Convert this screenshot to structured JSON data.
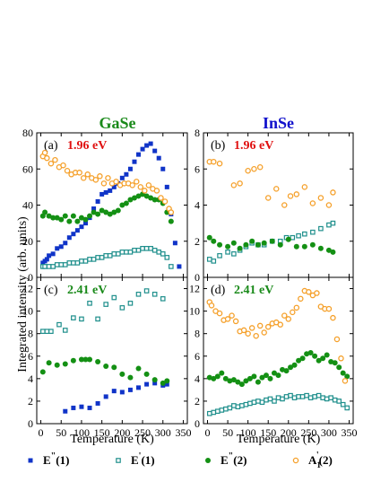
{
  "colors": {
    "E2_1": "#1034c8",
    "E1_1": "#1f8f8c",
    "E2_2": "#149014",
    "A1_2": "#f5a02a",
    "GaSe": "#1a8a1a",
    "InSe": "#1010cc",
    "e196": "#e01010",
    "e241": "#1a8a1a"
  },
  "legend": [
    {
      "key": "E2_1",
      "base": "E",
      "sup": "\"",
      "paren": "(1)"
    },
    {
      "key": "E1_1",
      "base": "E",
      "sup": "'",
      "paren": "(1)"
    },
    {
      "key": "E2_2",
      "base": "E",
      "sup": "\"",
      "paren": "(2)"
    },
    {
      "key": "A1_2",
      "base": "A",
      "sub": "1",
      "sup": "'",
      "paren": "(2)"
    }
  ],
  "ylabel": "Integrated intensity (arb. units)",
  "chart_data": [
    {
      "type": "scatter",
      "panel": "(a)",
      "energy": "1.96 eV",
      "energy_color": "e196",
      "title": "GaSe",
      "title_color": "GaSe",
      "xlabel": "Temperature (K)",
      "xlim": [
        -10,
        360
      ],
      "ylim": [
        0,
        80
      ],
      "xticks": [
        0,
        50,
        100,
        150,
        200,
        250,
        300,
        350
      ],
      "yticks": [
        0,
        20,
        40,
        60,
        80
      ],
      "series": [
        {
          "key": "E2_1",
          "x": [
            5,
            10,
            15,
            20,
            30,
            40,
            50,
            60,
            70,
            80,
            90,
            100,
            110,
            120,
            130,
            140,
            150,
            160,
            170,
            180,
            190,
            200,
            210,
            220,
            230,
            240,
            250,
            260,
            270,
            280,
            290,
            300,
            310,
            320,
            330,
            340
          ],
          "y": [
            8,
            9,
            10,
            12,
            13,
            16,
            17,
            19,
            22,
            24,
            26,
            28,
            30,
            33,
            38,
            42,
            46,
            47,
            48,
            50,
            52,
            55,
            57,
            60,
            64,
            68,
            71,
            73,
            74,
            70,
            66,
            60,
            50,
            35,
            19,
            6
          ]
        },
        {
          "key": "E1_1",
          "x": [
            5,
            10,
            20,
            30,
            40,
            50,
            60,
            70,
            80,
            90,
            100,
            110,
            120,
            130,
            140,
            150,
            160,
            170,
            180,
            190,
            200,
            210,
            220,
            230,
            240,
            250,
            260,
            270,
            280,
            290,
            300,
            310,
            320
          ],
          "y": [
            6,
            6,
            6,
            6,
            7,
            7,
            7,
            8,
            8,
            8,
            9,
            9,
            10,
            10,
            11,
            11,
            12,
            12,
            13,
            13,
            14,
            14,
            14,
            15,
            15,
            16,
            16,
            16,
            15,
            14,
            13,
            11,
            6
          ]
        },
        {
          "key": "E2_2",
          "x": [
            5,
            10,
            20,
            30,
            40,
            50,
            60,
            70,
            80,
            90,
            100,
            110,
            120,
            130,
            140,
            150,
            160,
            170,
            180,
            190,
            200,
            210,
            220,
            230,
            240,
            250,
            260,
            270,
            280,
            290,
            300,
            310,
            320
          ],
          "y": [
            34,
            36,
            34,
            33,
            33,
            32,
            34,
            31,
            34,
            31,
            33,
            32,
            34,
            36,
            35,
            37,
            36,
            35,
            36,
            37,
            40,
            41,
            43,
            44,
            45,
            46,
            45,
            44,
            43,
            43,
            41,
            36,
            31
          ]
        },
        {
          "key": "A1_2",
          "x": [
            5,
            10,
            15,
            25,
            35,
            45,
            55,
            65,
            75,
            85,
            95,
            105,
            115,
            125,
            135,
            145,
            155,
            165,
            175,
            185,
            195,
            205,
            215,
            225,
            235,
            245,
            255,
            265,
            275,
            285,
            295,
            305,
            315,
            320
          ],
          "y": [
            67,
            69,
            66,
            63,
            65,
            61,
            62,
            59,
            57,
            58,
            58,
            55,
            57,
            55,
            54,
            56,
            52,
            55,
            52,
            53,
            51,
            52,
            52,
            51,
            53,
            50,
            48,
            51,
            49,
            48,
            44,
            42,
            38,
            36
          ]
        }
      ]
    },
    {
      "type": "scatter",
      "panel": "(b)",
      "energy": "1.96 eV",
      "energy_color": "e196",
      "title": "InSe",
      "title_color": "InSe",
      "xlabel": "Temperature (K)",
      "xlim": [
        -10,
        360
      ],
      "ylim": [
        0,
        8
      ],
      "xticks": [
        0,
        50,
        100,
        150,
        200,
        250,
        300,
        350
      ],
      "yticks": [
        0,
        2,
        4,
        6,
        8
      ],
      "series": [
        {
          "key": "E1_1",
          "x": [
            5,
            15,
            30,
            50,
            65,
            80,
            95,
            110,
            125,
            140,
            160,
            180,
            195,
            210,
            225,
            240,
            260,
            280,
            300,
            310
          ],
          "y": [
            1.0,
            0.9,
            1.2,
            1.4,
            1.3,
            1.5,
            1.7,
            1.9,
            1.8,
            1.8,
            2.0,
            2.0,
            2.2,
            2.2,
            2.3,
            2.4,
            2.5,
            2.7,
            2.9,
            3.0
          ]
        },
        {
          "key": "E2_2",
          "x": [
            5,
            15,
            30,
            50,
            65,
            80,
            95,
            110,
            125,
            140,
            160,
            180,
            200,
            220,
            240,
            260,
            280,
            300,
            310
          ],
          "y": [
            2.2,
            2.0,
            1.8,
            1.7,
            1.9,
            1.6,
            1.8,
            2.0,
            1.8,
            1.9,
            2.0,
            1.8,
            2.1,
            1.7,
            1.7,
            1.8,
            1.6,
            1.5,
            1.4
          ]
        },
        {
          "key": "A1_2",
          "x": [
            5,
            15,
            30,
            65,
            80,
            100,
            115,
            130,
            150,
            170,
            190,
            205,
            220,
            240,
            260,
            280,
            300,
            310
          ],
          "y": [
            6.4,
            6.4,
            6.3,
            5.1,
            5.2,
            5.9,
            6.0,
            6.1,
            4.4,
            4.9,
            4.0,
            4.5,
            4.6,
            5.0,
            4.1,
            4.4,
            4.0,
            4.7
          ]
        }
      ]
    },
    {
      "type": "scatter",
      "panel": "(c)",
      "energy": "2.41 eV",
      "energy_color": "e241",
      "xlabel": "Temperature (K)",
      "xlim": [
        -10,
        360
      ],
      "ylim": [
        0,
        13
      ],
      "xticks": [
        0,
        50,
        100,
        150,
        200,
        250,
        300,
        350
      ],
      "yticks": [
        0,
        2,
        4,
        6,
        8,
        10,
        12
      ],
      "series": [
        {
          "key": "E2_1",
          "x": [
            60,
            80,
            100,
            120,
            140,
            160,
            180,
            200,
            220,
            240,
            260,
            280,
            300,
            310
          ],
          "y": [
            1.1,
            1.4,
            1.5,
            1.4,
            1.8,
            2.4,
            2.9,
            2.8,
            3.0,
            3.2,
            3.5,
            3.6,
            3.4,
            3.5
          ]
        },
        {
          "key": "E1_1",
          "x": [
            5,
            15,
            25,
            45,
            60,
            80,
            100,
            120,
            140,
            160,
            180,
            200,
            220,
            240,
            260,
            280,
            300
          ],
          "y": [
            8.2,
            8.2,
            8.2,
            8.8,
            8.3,
            9.4,
            9.3,
            10.7,
            9.3,
            10.6,
            11.2,
            10.3,
            10.7,
            11.5,
            11.8,
            11.5,
            11.1
          ]
        },
        {
          "key": "E2_2",
          "x": [
            5,
            20,
            40,
            60,
            80,
            100,
            110,
            120,
            140,
            160,
            180,
            200,
            220,
            240,
            260,
            280,
            300,
            310
          ],
          "y": [
            4.6,
            5.4,
            5.2,
            5.3,
            5.6,
            5.7,
            5.7,
            5.7,
            5.5,
            5.1,
            5.0,
            4.4,
            4.1,
            4.9,
            4.4,
            3.9,
            3.6,
            3.8
          ]
        }
      ]
    },
    {
      "type": "scatter",
      "panel": "(d)",
      "energy": "2.41 eV",
      "energy_color": "e241",
      "xlabel": "Temperature (K)",
      "xlim": [
        -10,
        360
      ],
      "ylim": [
        0,
        13
      ],
      "xticks": [
        0,
        50,
        100,
        150,
        200,
        250,
        300,
        350
      ],
      "yticks": [
        0,
        2,
        4,
        6,
        8,
        10,
        12
      ],
      "series": [
        {
          "key": "E1_1",
          "x": [
            5,
            15,
            25,
            35,
            45,
            55,
            65,
            75,
            85,
            95,
            105,
            115,
            125,
            135,
            145,
            155,
            165,
            175,
            185,
            195,
            205,
            215,
            225,
            235,
            245,
            255,
            265,
            275,
            285,
            295,
            305,
            315,
            325,
            335,
            345
          ],
          "y": [
            0.9,
            1.0,
            1.1,
            1.2,
            1.3,
            1.4,
            1.6,
            1.5,
            1.6,
            1.7,
            1.8,
            1.9,
            2.0,
            1.9,
            2.1,
            2.2,
            2.0,
            2.3,
            2.2,
            2.4,
            2.5,
            2.3,
            2.4,
            2.4,
            2.5,
            2.3,
            2.4,
            2.5,
            2.3,
            2.2,
            2.3,
            2.1,
            2.0,
            1.7,
            1.4
          ]
        },
        {
          "key": "E2_2",
          "x": [
            5,
            15,
            25,
            35,
            45,
            55,
            65,
            75,
            85,
            95,
            105,
            115,
            125,
            135,
            145,
            155,
            165,
            175,
            185,
            195,
            205,
            215,
            225,
            235,
            245,
            255,
            265,
            275,
            285,
            295,
            305,
            315,
            325,
            335,
            345
          ],
          "y": [
            4.1,
            4.0,
            4.2,
            4.5,
            4.0,
            3.8,
            3.9,
            3.7,
            3.5,
            3.8,
            4.0,
            4.2,
            3.7,
            4.1,
            4.3,
            4.0,
            4.5,
            4.3,
            4.8,
            4.7,
            5.0,
            5.2,
            5.6,
            5.8,
            6.2,
            6.3,
            6.0,
            5.6,
            5.8,
            6.1,
            5.5,
            5.4,
            5.0,
            4.5,
            4.2
          ]
        },
        {
          "key": "A1_2",
          "x": [
            5,
            10,
            20,
            30,
            40,
            50,
            60,
            70,
            80,
            90,
            100,
            110,
            120,
            130,
            140,
            150,
            160,
            170,
            180,
            190,
            200,
            210,
            220,
            230,
            240,
            250,
            260,
            270,
            280,
            290,
            300,
            310,
            320,
            330,
            340
          ],
          "y": [
            10.8,
            10.5,
            10.0,
            9.8,
            9.2,
            9.3,
            9.6,
            9.1,
            8.2,
            8.3,
            8.0,
            8.5,
            7.8,
            8.7,
            8.1,
            8.6,
            8.9,
            9.0,
            8.8,
            9.6,
            9.3,
            9.9,
            10.3,
            11.1,
            11.8,
            11.7,
            11.4,
            11.6,
            10.4,
            10.2,
            10.2,
            9.4,
            7.5,
            5.8,
            3.8
          ]
        }
      ]
    }
  ]
}
